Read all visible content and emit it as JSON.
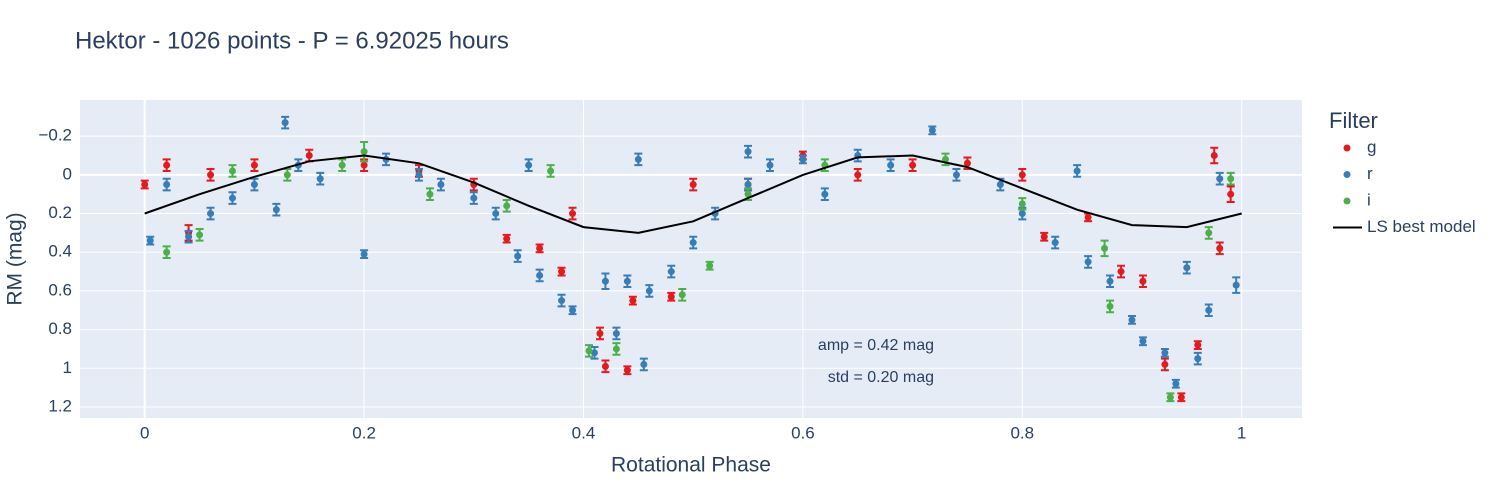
{
  "chart_data": {
    "type": "scatter",
    "title": "Hektor - 1026 points - P = 6.92025 hours",
    "x_label": "Rotational Phase",
    "y_label": "RM (mag)",
    "legend_title": "Filter",
    "xlim": [
      -0.059,
      1.055
    ],
    "xticks": [
      0,
      0.2,
      0.4,
      0.6,
      0.8,
      1
    ],
    "ylim": [
      -0.387,
      1.257
    ],
    "y_reversed": true,
    "yticks": [
      {
        "value": -0.2,
        "label": "−0.2"
      },
      0,
      0.2,
      0.4,
      0.6,
      0.8,
      1,
      1.2
    ],
    "grid": true,
    "legend": "right",
    "annotations": [
      "amp = 0.42 mag",
      "std = 0.20 mag"
    ],
    "series": [
      {
        "name": "g",
        "color": "#e41a1c",
        "x": [
          0,
          0.02,
          0.04,
          0.06,
          0.1,
          0.15,
          0.2,
          0.25,
          0.3,
          0.33,
          0.36,
          0.38,
          0.39,
          0.415,
          0.42,
          0.44,
          0.445,
          0.48,
          0.5,
          0.55,
          0.6,
          0.65,
          0.7,
          0.75,
          0.8,
          0.82,
          0.86,
          0.89,
          0.91,
          0.93,
          0.945,
          0.96,
          0.975,
          0.98,
          0.99
        ],
        "values": [
          0.05,
          -0.05,
          0.3,
          0.0,
          -0.05,
          -0.1,
          -0.05,
          -0.02,
          0.05,
          0.33,
          0.38,
          0.5,
          0.2,
          0.82,
          0.99,
          1.01,
          0.65,
          0.63,
          0.05,
          0.05,
          -0.1,
          0.0,
          -0.05,
          -0.06,
          0.0,
          0.32,
          0.22,
          0.5,
          0.55,
          0.98,
          1.15,
          0.88,
          -0.1,
          0.38,
          0.1
        ],
        "errors": [
          0.02,
          0.03,
          0.04,
          0.03,
          0.03,
          0.03,
          0.03,
          0.03,
          0.03,
          0.02,
          0.02,
          0.02,
          0.03,
          0.03,
          0.03,
          0.02,
          0.02,
          0.02,
          0.03,
          0.03,
          0.02,
          0.03,
          0.03,
          0.03,
          0.03,
          0.02,
          0.02,
          0.03,
          0.03,
          0.03,
          0.02,
          0.02,
          0.04,
          0.03,
          0.04
        ]
      },
      {
        "name": "r",
        "color": "#377eb8",
        "x": [
          0.005,
          0.02,
          0.04,
          0.06,
          0.08,
          0.1,
          0.128,
          0.14,
          0.16,
          0.2,
          0.22,
          0.25,
          0.27,
          0.3,
          0.32,
          0.34,
          0.36,
          0.38,
          0.39,
          0.41,
          0.42,
          0.43,
          0.44,
          0.455,
          0.46,
          0.48,
          0.5,
          0.52,
          0.55,
          0.57,
          0.6,
          0.62,
          0.65,
          0.68,
          0.718,
          0.74,
          0.78,
          0.8,
          0.83,
          0.86,
          0.88,
          0.9,
          0.91,
          0.93,
          0.94,
          0.95,
          0.96,
          0.97,
          0.98,
          0.995,
          0.55,
          0.35,
          0.85,
          0.45,
          0.12
        ],
        "values": [
          0.34,
          0.05,
          0.32,
          0.2,
          0.12,
          0.05,
          -0.27,
          -0.05,
          0.02,
          0.41,
          -0.08,
          0.0,
          0.05,
          0.12,
          0.2,
          0.42,
          0.52,
          0.65,
          0.7,
          0.92,
          0.55,
          0.82,
          0.55,
          0.98,
          0.6,
          0.5,
          0.35,
          0.2,
          0.05,
          -0.05,
          -0.08,
          0.1,
          -0.1,
          -0.05,
          -0.23,
          0.0,
          0.05,
          0.2,
          0.35,
          0.45,
          0.55,
          0.75,
          0.86,
          0.92,
          1.08,
          0.48,
          0.95,
          0.7,
          0.02,
          0.57,
          -0.12,
          -0.05,
          -0.02,
          -0.08,
          0.18
        ],
        "errors": [
          0.02,
          0.03,
          0.03,
          0.03,
          0.03,
          0.03,
          0.03,
          0.03,
          0.03,
          0.02,
          0.03,
          0.03,
          0.03,
          0.03,
          0.03,
          0.03,
          0.03,
          0.03,
          0.02,
          0.03,
          0.04,
          0.03,
          0.03,
          0.03,
          0.03,
          0.03,
          0.03,
          0.03,
          0.03,
          0.03,
          0.02,
          0.03,
          0.03,
          0.03,
          0.02,
          0.03,
          0.03,
          0.03,
          0.03,
          0.03,
          0.03,
          0.02,
          0.02,
          0.02,
          0.02,
          0.03,
          0.03,
          0.03,
          0.03,
          0.04,
          0.03,
          0.03,
          0.03,
          0.03,
          0.03
        ]
      },
      {
        "name": "i",
        "color": "#4daf4a",
        "x": [
          0.02,
          0.05,
          0.08,
          0.13,
          0.18,
          0.2,
          0.26,
          0.33,
          0.37,
          0.405,
          0.43,
          0.49,
          0.515,
          0.55,
          0.62,
          0.73,
          0.8,
          0.875,
          0.88,
          0.935,
          0.97,
          0.99
        ],
        "values": [
          0.4,
          0.31,
          -0.02,
          0.0,
          -0.05,
          -0.12,
          0.1,
          0.16,
          -0.02,
          0.91,
          0.9,
          0.62,
          0.47,
          0.1,
          -0.05,
          -0.08,
          0.15,
          0.38,
          0.68,
          1.15,
          0.3,
          0.02
        ],
        "errors": [
          0.03,
          0.03,
          0.03,
          0.03,
          0.03,
          0.05,
          0.03,
          0.03,
          0.03,
          0.03,
          0.03,
          0.03,
          0.02,
          0.03,
          0.03,
          0.03,
          0.03,
          0.04,
          0.03,
          0.02,
          0.03,
          0.03
        ]
      },
      {
        "name": "LS best model",
        "color": "#000000",
        "mode": "line",
        "x": [
          0,
          0.05,
          0.1,
          0.15,
          0.2,
          0.25,
          0.3,
          0.35,
          0.4,
          0.45,
          0.5,
          0.55,
          0.6,
          0.65,
          0.7,
          0.75,
          0.8,
          0.85,
          0.9,
          0.95,
          1
        ],
        "values": [
          0.2,
          0.1,
          0.01,
          -0.07,
          -0.1,
          -0.06,
          0.04,
          0.16,
          0.27,
          0.3,
          0.24,
          0.12,
          0.0,
          -0.09,
          -0.1,
          -0.04,
          0.07,
          0.18,
          0.26,
          0.27,
          0.2
        ]
      }
    ]
  }
}
